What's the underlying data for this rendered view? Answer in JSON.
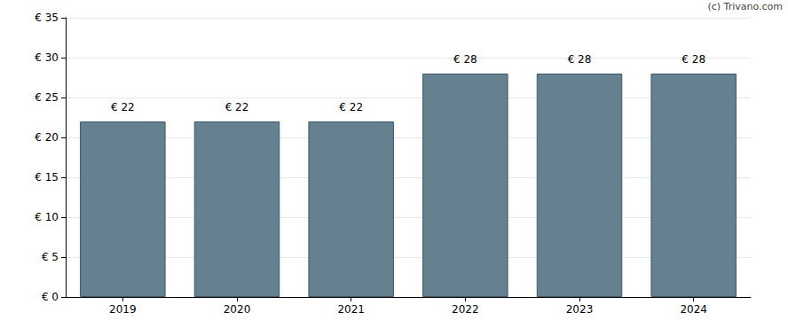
{
  "chart_data": {
    "type": "bar",
    "annotations": [
      "(c) Trivano.com"
    ],
    "categories": [
      "2019",
      "2020",
      "2021",
      "2022",
      "2023",
      "2024"
    ],
    "values": [
      22,
      22,
      22,
      28,
      28,
      28
    ],
    "value_labels": [
      "€ 22",
      "€ 22",
      "€ 22",
      "€ 28",
      "€ 28",
      "€ 28"
    ],
    "data_labels": true,
    "color": "#65808f",
    "ylim": [
      0,
      35
    ],
    "yticks": [
      {
        "value": 0,
        "label": "€ 0"
      },
      {
        "value": 5,
        "label": "€ 5"
      },
      {
        "value": 10,
        "label": "€ 10"
      },
      {
        "value": 15,
        "label": "€ 15"
      },
      {
        "value": 20,
        "label": "€ 20"
      },
      {
        "value": 25,
        "label": "€ 25"
      },
      {
        "value": 30,
        "label": "€ 30"
      },
      {
        "value": 35,
        "label": "€ 35"
      }
    ],
    "grid": true
  }
}
